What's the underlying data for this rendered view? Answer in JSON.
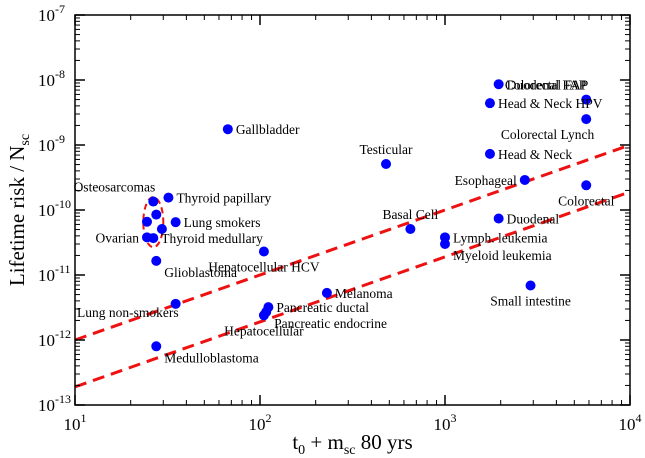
{
  "chart_data": {
    "type": "scatter",
    "title": "",
    "xlabel": "t0 + msc 80 yrs",
    "xlabel_parts": {
      "t": "t",
      "sub0": "0",
      "plus": " + m",
      "subsc": "sc",
      "tail": " 80 yrs"
    },
    "ylabel": "Lifetime risk / Nsc",
    "ylabel_parts": {
      "main": "Lifetime risk / N",
      "sub": "sc"
    },
    "x_scale": "log",
    "y_scale": "log",
    "xlim": [
      10,
      10000
    ],
    "ylim": [
      1e-13,
      1e-07
    ],
    "x_ticks": [
      {
        "value": 10,
        "base": "10",
        "exp": "1"
      },
      {
        "value": 100,
        "base": "10",
        "exp": "2"
      },
      {
        "value": 1000,
        "base": "10",
        "exp": "3"
      },
      {
        "value": 10000,
        "base": "10",
        "exp": "4"
      }
    ],
    "y_ticks": [
      {
        "value": 1e-13,
        "base": "10",
        "exp": "-13"
      },
      {
        "value": 1e-12,
        "base": "10",
        "exp": "-12"
      },
      {
        "value": 1e-11,
        "base": "10",
        "exp": "-11"
      },
      {
        "value": 1e-10,
        "base": "10",
        "exp": "-10"
      },
      {
        "value": 1e-09,
        "base": "10",
        "exp": "-9"
      },
      {
        "value": 1e-08,
        "base": "10",
        "exp": "-8"
      },
      {
        "value": 1e-07,
        "base": "10",
        "exp": "-7"
      }
    ],
    "grid": false,
    "marker_color": "#0000ff",
    "line_color": "#ee1111",
    "points": [
      {
        "label": "Colorectal FAP",
        "x": 5800,
        "y": 5e-09,
        "lpos": "above-left"
      },
      {
        "label": "Duodenal FAP",
        "x": 1950,
        "y": 8.6e-09,
        "lpos": "right"
      },
      {
        "label": "Head & Neck HPV",
        "x": 1750,
        "y": 4.4e-09,
        "lpos": "right"
      },
      {
        "label": "Colorectal Lynch",
        "x": 5800,
        "y": 2.5e-09,
        "lpos": "below-left"
      },
      {
        "label": "Gallbladder",
        "x": 67,
        "y": 1.75e-09,
        "lpos": "right"
      },
      {
        "label": "Testicular",
        "x": 480,
        "y": 5.1e-10,
        "lpos": "above"
      },
      {
        "label": "Head & Neck",
        "x": 1750,
        "y": 7.3e-10,
        "lpos": "right"
      },
      {
        "label": "Esophageal",
        "x": 2700,
        "y": 2.9e-10,
        "lpos": "left"
      },
      {
        "label": "Colorectal",
        "x": 5800,
        "y": 2.4e-10,
        "lpos": "below"
      },
      {
        "label": "Thyroid papillary",
        "x": 32,
        "y": 1.55e-10,
        "lpos": "right"
      },
      {
        "label": "Osteosarcomas",
        "x": 26.5,
        "y": 1.35e-10,
        "lpos": "above-left"
      },
      {
        "label": "",
        "x": 27.5,
        "y": 8.5e-11,
        "lpos": "none"
      },
      {
        "label": "",
        "x": 24.5,
        "y": 6.6e-11,
        "lpos": "none"
      },
      {
        "label": "Lung smokers",
        "x": 35,
        "y": 6.5e-11,
        "lpos": "right"
      },
      {
        "label": "",
        "x": 29.5,
        "y": 5.1e-11,
        "lpos": "none"
      },
      {
        "label": "Ovarian",
        "x": 24.5,
        "y": 3.8e-11,
        "lpos": "left"
      },
      {
        "label": "Thyroid medullary",
        "x": 26.5,
        "y": 3.7e-11,
        "lpos": "right"
      },
      {
        "label": "Basal Cell",
        "x": 650,
        "y": 5.1e-11,
        "lpos": "above"
      },
      {
        "label": "Duodenal",
        "x": 1950,
        "y": 7.4e-11,
        "lpos": "right"
      },
      {
        "label": "Lymph. leukemia",
        "x": 1000,
        "y": 3.8e-11,
        "lpos": "right"
      },
      {
        "label": "Myeloid leukemia",
        "x": 1000,
        "y": 3e-11,
        "lpos": "right-below"
      },
      {
        "label": "Hepatocellular HCV",
        "x": 105,
        "y": 2.3e-11,
        "lpos": "below"
      },
      {
        "label": "Glioblastoma",
        "x": 27.5,
        "y": 1.65e-11,
        "lpos": "right-below"
      },
      {
        "label": "Small intestine",
        "x": 2900,
        "y": 6.9e-12,
        "lpos": "below"
      },
      {
        "label": "Melanoma",
        "x": 230,
        "y": 5.3e-12,
        "lpos": "right"
      },
      {
        "label": "Lung non-smokers",
        "x": 35,
        "y": 3.6e-12,
        "lpos": "left-below"
      },
      {
        "label": "Pancreatic ductal",
        "x": 111,
        "y": 3.2e-12,
        "lpos": "right"
      },
      {
        "label": "Pancreatic endocrine",
        "x": 108,
        "y": 2.7e-12,
        "lpos": "right-below"
      },
      {
        "label": "Hepatocellular",
        "x": 105,
        "y": 2.4e-12,
        "lpos": "below"
      },
      {
        "label": "Medulloblastoma",
        "x": 27.5,
        "y": 8e-13,
        "lpos": "right-below"
      }
    ],
    "fit_lines": [
      {
        "x": [
          10,
          10000
        ],
        "y": [
          1e-12,
          1e-09
        ]
      },
      {
        "x": [
          10,
          10000
        ],
        "y": [
          1.9e-13,
          1.9e-10
        ]
      }
    ],
    "ellipse": {
      "center_x": 26.5,
      "center_y": 6.5e-11,
      "note": "dashed oval around the osteosarcoma group"
    }
  }
}
